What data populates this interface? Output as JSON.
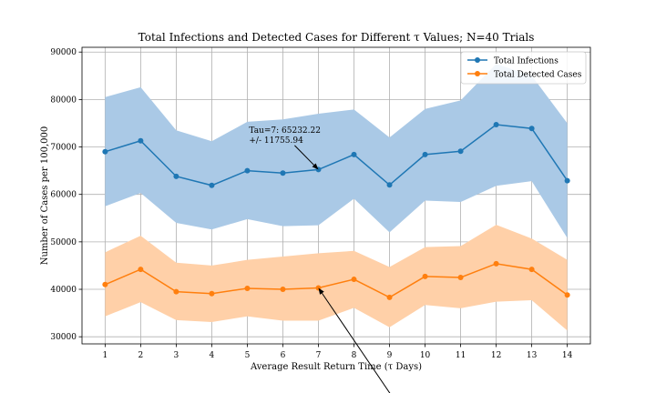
{
  "chart_data": {
    "type": "line",
    "title": "Total Infections and Detected Cases for Different τ Values; N=40 Trials",
    "xlabel": "Average Result Return Time (τ Days)",
    "ylabel": "Number of Cases per 100,000",
    "x": [
      1,
      2,
      3,
      4,
      5,
      6,
      7,
      8,
      9,
      10,
      11,
      12,
      13,
      14
    ],
    "xlim": [
      0.35,
      14.65
    ],
    "ylim": [
      28500,
      91000
    ],
    "yticks": [
      30000,
      40000,
      50000,
      60000,
      70000,
      80000,
      90000
    ],
    "grid": true,
    "legend_position": "top-right",
    "series": [
      {
        "name": "Total Infections",
        "color": "#1f77b4",
        "band_color": "#aac9e6",
        "values": [
          69000,
          71300,
          63800,
          61900,
          65000,
          64500,
          65232,
          68400,
          62000,
          68400,
          69100,
          74700,
          73900,
          62900
        ],
        "upper": [
          80500,
          82600,
          73500,
          71200,
          75300,
          75800,
          77000,
          77900,
          72000,
          78000,
          79800,
          87500,
          85000,
          75000
        ],
        "lower": [
          57500,
          60300,
          54000,
          52600,
          54800,
          53300,
          53500,
          59100,
          52000,
          58700,
          58400,
          61800,
          62800,
          50800
        ]
      },
      {
        "name": "Total Detected  Cases",
        "color": "#ff7f0e",
        "band_color": "#ffd0a8",
        "values": [
          41000,
          44200,
          39500,
          39100,
          40200,
          40000,
          40300,
          42100,
          38300,
          42700,
          42500,
          45400,
          44200,
          38800
        ],
        "upper": [
          47800,
          51300,
          45600,
          45000,
          46200,
          46900,
          47600,
          48100,
          44700,
          48900,
          49100,
          53600,
          50700,
          46200
        ],
        "lower": [
          34300,
          37300,
          33500,
          33100,
          34300,
          33400,
          33400,
          36100,
          32000,
          36700,
          36000,
          37400,
          37700,
          31300
        ]
      }
    ],
    "annotations": [
      {
        "text_lines": [
          "Tau=7: 65232.22",
          "+/- 11755.94"
        ],
        "target": [
          7,
          65232
        ],
        "text_at": [
          5.05,
          73000
        ]
      },
      {
        "text_lines": [],
        "target": [
          7,
          40300
        ],
        "text_at": [
          9.2,
          16000
        ]
      }
    ]
  }
}
